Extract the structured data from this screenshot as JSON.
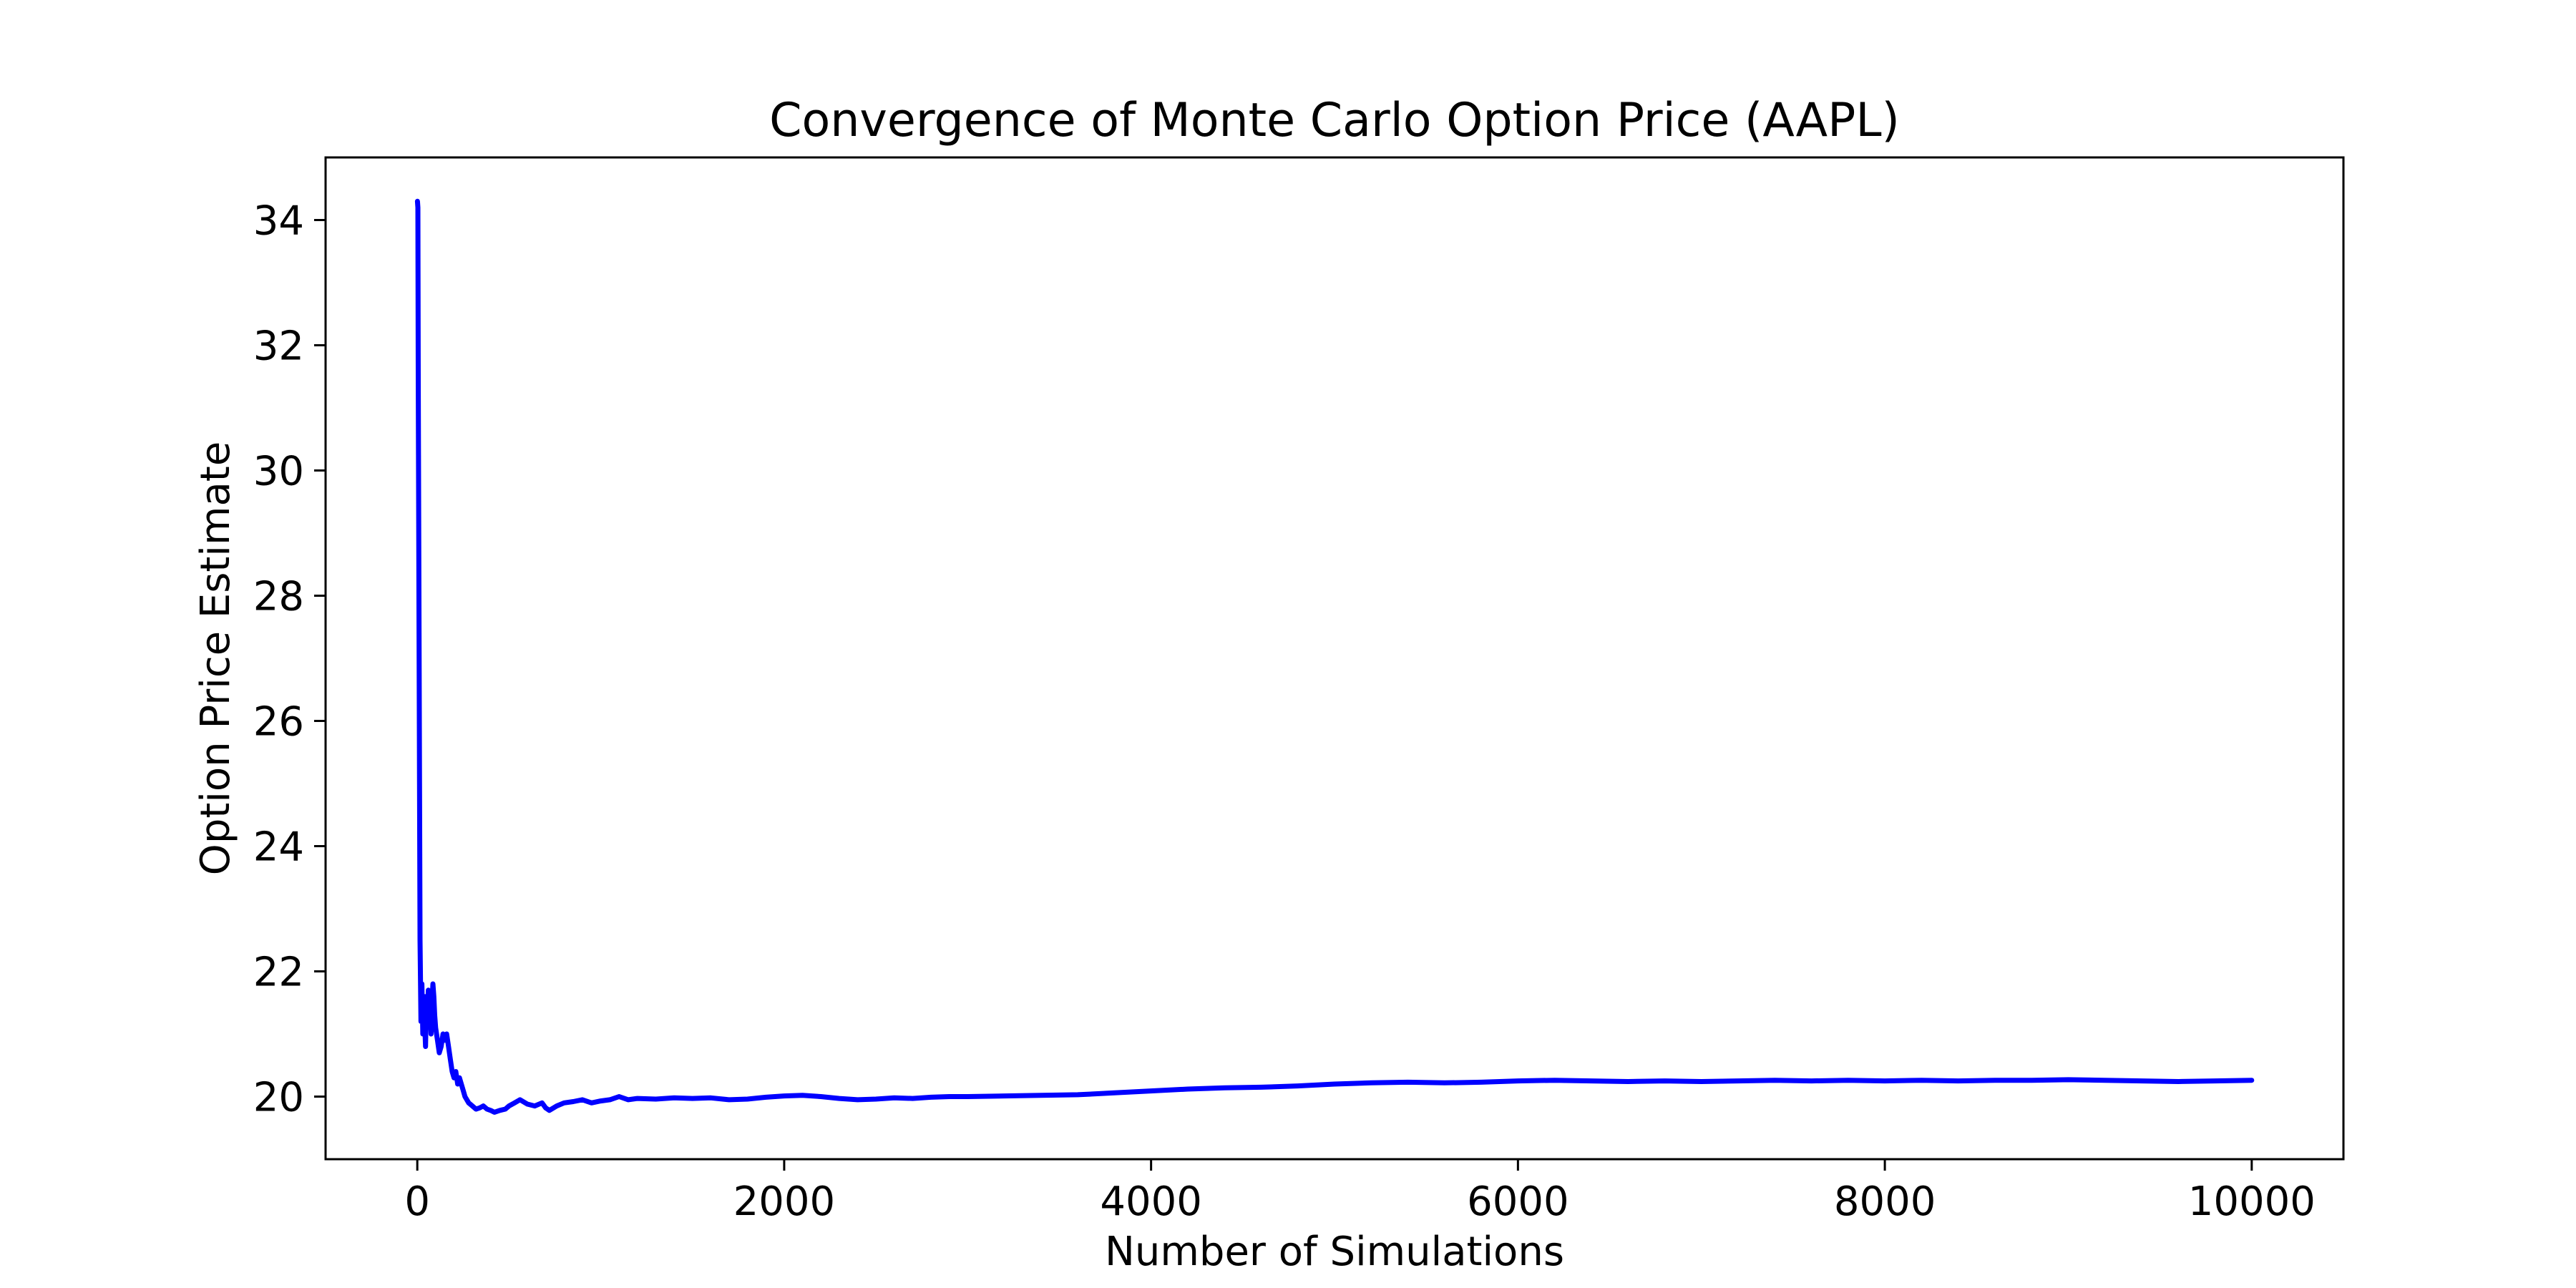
{
  "chart_data": {
    "type": "line",
    "title": "Convergence of Monte Carlo Option Price (AAPL)",
    "xlabel": "Number of Simulations",
    "ylabel": "Option Price Estimate",
    "xlim": [
      -500,
      10500
    ],
    "ylim": [
      19.0,
      35.0
    ],
    "xticks": [
      0,
      2000,
      4000,
      6000,
      8000,
      10000
    ],
    "yticks": [
      20,
      22,
      24,
      26,
      28,
      30,
      32,
      34
    ],
    "grid": false,
    "legend": "none",
    "series": [
      {
        "color": "#0000ff",
        "x": [
          1,
          3,
          5,
          8,
          12,
          15,
          20,
          25,
          30,
          35,
          40,
          45,
          50,
          55,
          60,
          65,
          70,
          75,
          80,
          85,
          90,
          95,
          100,
          110,
          120,
          130,
          140,
          150,
          160,
          170,
          180,
          190,
          200,
          210,
          220,
          230,
          240,
          250,
          260,
          280,
          300,
          320,
          340,
          360,
          380,
          400,
          420,
          450,
          480,
          500,
          530,
          560,
          600,
          640,
          680,
          700,
          720,
          760,
          800,
          850,
          900,
          950,
          1000,
          1050,
          1100,
          1150,
          1200,
          1300,
          1400,
          1500,
          1600,
          1700,
          1800,
          1900,
          2000,
          2100,
          2200,
          2300,
          2400,
          2500,
          2600,
          2700,
          2800,
          2900,
          3000,
          3200,
          3400,
          3600,
          3800,
          4000,
          4200,
          4400,
          4600,
          4800,
          5000,
          5200,
          5400,
          5600,
          5800,
          6000,
          6200,
          6400,
          6600,
          6800,
          7000,
          7200,
          7400,
          7600,
          7800,
          8000,
          8200,
          8400,
          8600,
          8800,
          9000,
          9200,
          9400,
          9600,
          9800,
          10000
        ],
        "y": [
          34.3,
          34.2,
          31.5,
          29.0,
          25.0,
          22.5,
          21.2,
          21.8,
          21.0,
          21.6,
          21.2,
          20.8,
          21.6,
          21.3,
          21.7,
          21.2,
          21.4,
          21.0,
          21.5,
          21.8,
          21.6,
          21.3,
          21.1,
          20.9,
          20.7,
          20.8,
          21.0,
          20.9,
          21.0,
          20.8,
          20.6,
          20.4,
          20.3,
          20.4,
          20.2,
          20.3,
          20.2,
          20.1,
          20.0,
          19.9,
          19.85,
          19.8,
          19.82,
          19.85,
          19.8,
          19.78,
          19.75,
          19.78,
          19.8,
          19.85,
          19.9,
          19.95,
          19.88,
          19.85,
          19.9,
          19.82,
          19.78,
          19.85,
          19.9,
          19.92,
          19.95,
          19.9,
          19.93,
          19.95,
          20.0,
          19.95,
          19.97,
          19.96,
          19.98,
          19.97,
          19.98,
          19.95,
          19.96,
          19.99,
          20.01,
          20.02,
          20.0,
          19.97,
          19.95,
          19.96,
          19.98,
          19.97,
          19.99,
          20.0,
          20.0,
          20.01,
          20.02,
          20.03,
          20.06,
          20.09,
          20.12,
          20.14,
          20.15,
          20.17,
          20.2,
          20.22,
          20.23,
          20.22,
          20.23,
          20.25,
          20.26,
          20.25,
          20.24,
          20.25,
          20.24,
          20.25,
          20.26,
          20.25,
          20.26,
          20.25,
          20.26,
          20.25,
          20.26,
          20.26,
          20.27,
          20.26,
          20.25,
          20.24,
          20.25,
          20.26
        ]
      }
    ]
  }
}
